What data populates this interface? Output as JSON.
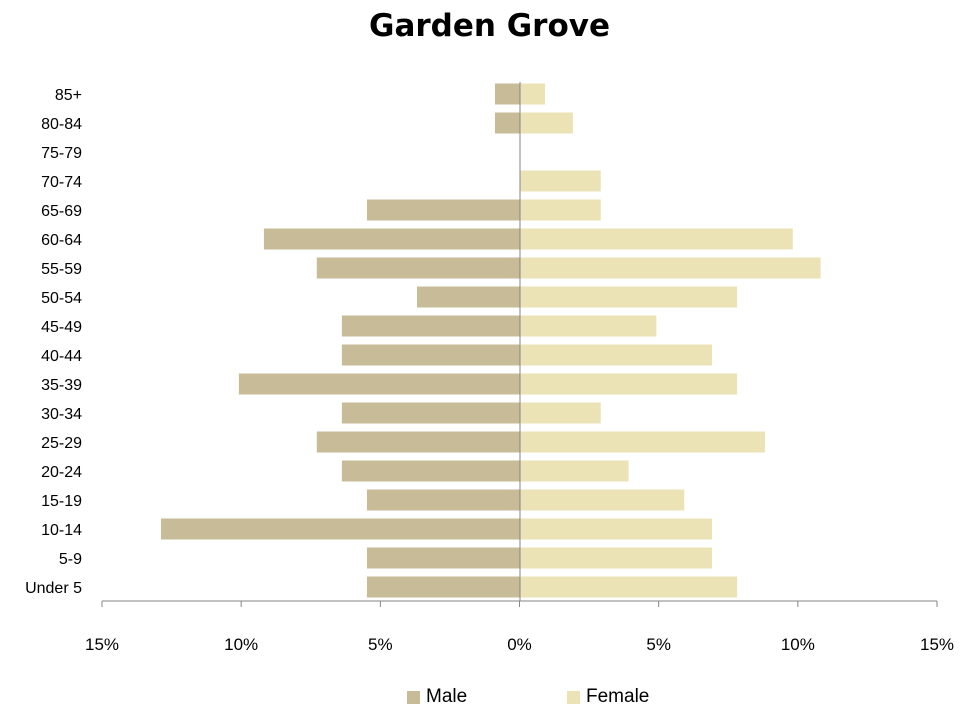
{
  "chart_data": {
    "type": "bar",
    "orientation": "horizontal",
    "subtype": "population-pyramid",
    "title": "Garden Grove",
    "categories": [
      "Under 5",
      "5-9",
      "10-14",
      "15-19",
      "20-24",
      "25-29",
      "30-34",
      "35-39",
      "40-44",
      "45-49",
      "50-54",
      "55-59",
      "60-64",
      "65-69",
      "70-74",
      "75-79",
      "80-84",
      "85+"
    ],
    "series": [
      {
        "name": "Male",
        "color": "#c8bb97",
        "values": [
          5.5,
          5.5,
          12.9,
          5.5,
          6.4,
          7.3,
          6.4,
          10.1,
          6.4,
          6.4,
          3.7,
          7.3,
          9.2,
          5.5,
          0,
          0,
          0.9,
          0.9
        ]
      },
      {
        "name": "Female",
        "color": "#ebe2b5",
        "values": [
          7.8,
          6.9,
          6.9,
          5.9,
          3.9,
          8.8,
          2.9,
          7.8,
          6.9,
          4.9,
          7.8,
          10.8,
          9.8,
          2.9,
          2.9,
          0,
          1.9,
          0.9
        ]
      }
    ],
    "xlim": [
      -15,
      15
    ],
    "x_ticks": [
      -15,
      -10,
      -5,
      0,
      5,
      10,
      15
    ],
    "x_tick_labels": [
      "15%",
      "10%",
      "5%",
      "0%",
      "5%",
      "10%",
      "15%"
    ],
    "grid": false,
    "legend_position": "bottom"
  }
}
